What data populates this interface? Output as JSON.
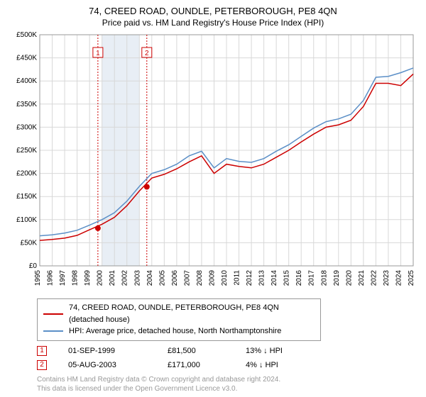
{
  "title": "74, CREED ROAD, OUNDLE, PETERBOROUGH, PE8 4QN",
  "subtitle": "Price paid vs. HM Land Registry's House Price Index (HPI)",
  "chart": {
    "type": "line",
    "background_color": "#ffffff",
    "grid_color": "#d8d8d8",
    "axis_color": "#999999",
    "x_years": [
      1995,
      1996,
      1997,
      1998,
      1999,
      2000,
      2001,
      2002,
      2003,
      2004,
      2005,
      2006,
      2007,
      2008,
      2009,
      2010,
      2011,
      2012,
      2013,
      2014,
      2015,
      2016,
      2017,
      2018,
      2019,
      2020,
      2021,
      2022,
      2023,
      2024,
      2025
    ],
    "ylim": [
      0,
      500000
    ],
    "ytick_step": 50000,
    "ytick_labels": [
      "£0",
      "£50K",
      "£100K",
      "£150K",
      "£200K",
      "£250K",
      "£300K",
      "£350K",
      "£400K",
      "£450K",
      "£500K"
    ],
    "label_fontsize": 10,
    "series": [
      {
        "name": "property",
        "label": "74, CREED ROAD, OUNDLE, PETERBOROUGH, PE8 4QN (detached house)",
        "color": "#cc0000",
        "line_width": 1.5,
        "values_by_year": {
          "1995": 55000,
          "1996": 57000,
          "1997": 60000,
          "1998": 66000,
          "1999": 78000,
          "2000": 90000,
          "2001": 105000,
          "2002": 130000,
          "2003": 162000,
          "2004": 190000,
          "2005": 198000,
          "2006": 210000,
          "2007": 225000,
          "2008": 238000,
          "2009": 200000,
          "2010": 220000,
          "2011": 215000,
          "2012": 212000,
          "2013": 220000,
          "2014": 235000,
          "2015": 250000,
          "2016": 268000,
          "2017": 285000,
          "2018": 300000,
          "2019": 305000,
          "2020": 315000,
          "2021": 345000,
          "2022": 395000,
          "2023": 395000,
          "2024": 390000,
          "2025": 415000
        }
      },
      {
        "name": "hpi",
        "label": "HPI: Average price, detached house, North Northamptonshire",
        "color": "#5b8fc7",
        "line_width": 1.5,
        "values_by_year": {
          "1995": 65000,
          "1996": 67000,
          "1997": 71000,
          "1998": 77000,
          "1999": 88000,
          "2000": 100000,
          "2001": 115000,
          "2002": 140000,
          "2003": 172000,
          "2004": 200000,
          "2005": 208000,
          "2006": 220000,
          "2007": 238000,
          "2008": 248000,
          "2009": 212000,
          "2010": 232000,
          "2011": 226000,
          "2012": 224000,
          "2013": 232000,
          "2014": 248000,
          "2015": 262000,
          "2016": 280000,
          "2017": 298000,
          "2018": 312000,
          "2019": 318000,
          "2020": 328000,
          "2021": 358000,
          "2022": 408000,
          "2023": 410000,
          "2024": 418000,
          "2025": 428000
        }
      }
    ],
    "vbands": [
      {
        "year": 2000,
        "color": "#e8eef5"
      },
      {
        "year": 2001,
        "color": "#e8eef5"
      },
      {
        "year": 2002,
        "color": "#e8eef5"
      }
    ],
    "annotations": [
      {
        "n": "1",
        "year": 1999.67,
        "line_color": "#cc0000",
        "box_border": "#cc0000",
        "box_text": "#cc0000"
      },
      {
        "n": "2",
        "year": 2003.6,
        "line_color": "#cc0000",
        "box_border": "#cc0000",
        "box_text": "#cc0000"
      }
    ],
    "markers": [
      {
        "year": 1999.67,
        "value": 81500,
        "color": "#cc0000",
        "size": 4
      },
      {
        "year": 2003.6,
        "value": 171000,
        "color": "#cc0000",
        "size": 4
      }
    ]
  },
  "legend": {
    "series1_label": "74, CREED ROAD, OUNDLE, PETERBOROUGH, PE8 4QN (detached house)",
    "series1_color": "#cc0000",
    "series2_label": "HPI: Average price, detached house, North Northamptonshire",
    "series2_color": "#5b8fc7"
  },
  "events": [
    {
      "n": "1",
      "date": "01-SEP-1999",
      "price": "£81,500",
      "delta": "13% ↓ HPI"
    },
    {
      "n": "2",
      "date": "05-AUG-2003",
      "price": "£171,000",
      "delta": "4% ↓ HPI"
    }
  ],
  "footnote": {
    "line1": "Contains HM Land Registry data © Crown copyright and database right 2024.",
    "line2": "This data is licensed under the Open Government Licence v3.0."
  }
}
